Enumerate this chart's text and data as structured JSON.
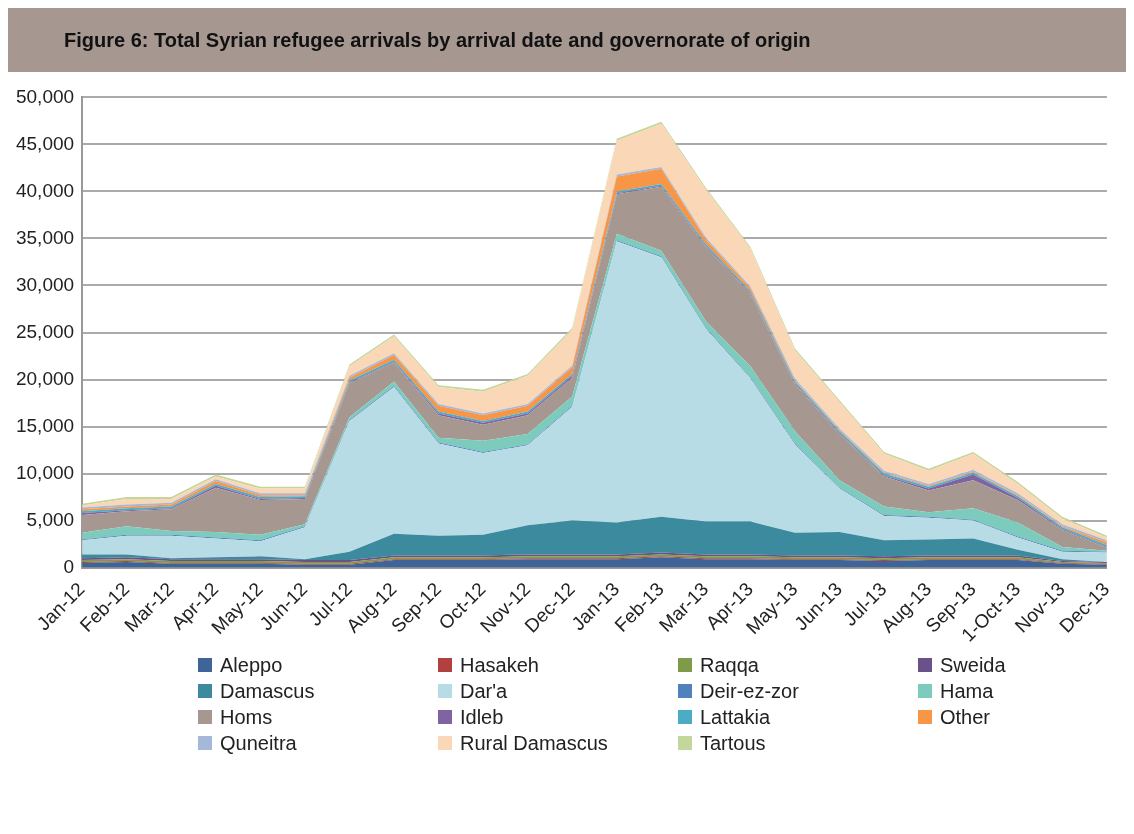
{
  "chart_data": {
    "type": "area",
    "stacked": true,
    "title": "Figure 6: Total Syrian refugee arrivals by arrival date and governorate of origin",
    "categories": [
      "Jan-12",
      "Feb-12",
      "Mar-12",
      "Apr-12",
      "May-12",
      "Jun-12",
      "Jul-12",
      "Aug-12",
      "Sep-12",
      "Oct-12",
      "Nov-12",
      "Dec-12",
      "Jan-13",
      "Feb-13",
      "Mar-13",
      "Apr-13",
      "May-13",
      "Jun-13",
      "Jul-13",
      "Aug-13",
      "Sep-13",
      "1-Oct-13",
      "Nov-13",
      "Dec-13"
    ],
    "ylim": [
      0,
      50000
    ],
    "yticks": [
      0,
      {
        "value": 5000,
        "label": "5,000"
      },
      {
        "value": 10000,
        "label": "10,000"
      },
      {
        "value": 15000,
        "label": "15,000"
      },
      {
        "value": 20000,
        "label": "20,000"
      },
      {
        "value": 25000,
        "label": "25,000"
      },
      {
        "value": 30000,
        "label": "30,000"
      },
      {
        "value": 35000,
        "label": "35,000"
      },
      {
        "value": 40000,
        "label": "40,000"
      },
      {
        "value": 45000,
        "label": "45,000"
      },
      {
        "value": 50000,
        "label": "50,000"
      }
    ],
    "grid": "y",
    "legend": "bottom",
    "series": [
      {
        "name": "Aleppo",
        "color": "#3f6497",
        "values": [
          500,
          600,
          400,
          400,
          400,
          300,
          300,
          800,
          800,
          800,
          900,
          900,
          900,
          1100,
          900,
          900,
          800,
          800,
          700,
          800,
          800,
          800,
          400,
          300
        ]
      },
      {
        "name": "Hasakeh",
        "color": "#b0413e",
        "values": [
          100,
          100,
          100,
          100,
          100,
          100,
          100,
          100,
          100,
          100,
          100,
          100,
          100,
          100,
          100,
          100,
          100,
          100,
          100,
          100,
          100,
          100,
          100,
          100
        ]
      },
      {
        "name": "Raqqa",
        "color": "#7f9a48",
        "values": [
          200,
          200,
          200,
          200,
          200,
          200,
          200,
          200,
          200,
          200,
          200,
          200,
          200,
          200,
          200,
          200,
          200,
          200,
          200,
          200,
          200,
          200,
          100,
          100
        ]
      },
      {
        "name": "Sweida",
        "color": "#6a5189",
        "values": [
          200,
          200,
          200,
          200,
          200,
          200,
          200,
          200,
          200,
          200,
          200,
          200,
          200,
          200,
          200,
          200,
          200,
          200,
          200,
          200,
          200,
          200,
          100,
          100
        ]
      },
      {
        "name": "Damascus",
        "color": "#3b8a9e",
        "values": [
          400,
          300,
          100,
          200,
          300,
          100,
          900,
          2300,
          2100,
          2200,
          3100,
          3600,
          3400,
          3800,
          3500,
          3500,
          2400,
          2500,
          1700,
          1700,
          1800,
          600,
          200,
          0
        ]
      },
      {
        "name": "Dar'a",
        "color": "#b8dce6",
        "values": [
          1500,
          2000,
          2400,
          2000,
          1600,
          3400,
          13900,
          15600,
          9800,
          8700,
          8500,
          12100,
          29900,
          27600,
          20500,
          15200,
          9400,
          4600,
          2600,
          2300,
          1900,
          1300,
          800,
          1000
        ]
      },
      {
        "name": "Deir-ez-zor",
        "color": "#4f81bd",
        "values": [
          100,
          100,
          100,
          100,
          100,
          100,
          100,
          100,
          100,
          100,
          100,
          100,
          100,
          100,
          100,
          100,
          100,
          100,
          100,
          100,
          100,
          100,
          100,
          100
        ]
      },
      {
        "name": "Hama",
        "color": "#7ccbbd",
        "values": [
          700,
          900,
          400,
          600,
          600,
          200,
          300,
          500,
          500,
          1200,
          1100,
          1000,
          700,
          600,
          700,
          1200,
          1300,
          800,
          900,
          500,
          1200,
          1500,
          400,
          100
        ]
      },
      {
        "name": "Homs",
        "color": "#a69891",
        "values": [
          1900,
          1600,
          2300,
          4700,
          3700,
          2700,
          3600,
          2000,
          2400,
          1700,
          2000,
          2000,
          4200,
          6800,
          7900,
          7700,
          5000,
          4900,
          3200,
          2300,
          3000,
          2400,
          1800,
          300
        ]
      },
      {
        "name": "Idleb",
        "color": "#8064a2",
        "values": [
          200,
          100,
          100,
          200,
          100,
          100,
          100,
          100,
          200,
          200,
          200,
          200,
          100,
          100,
          100,
          100,
          100,
          100,
          100,
          200,
          600,
          200,
          100,
          100
        ]
      },
      {
        "name": "Lattakia",
        "color": "#4bacc6",
        "values": [
          200,
          200,
          200,
          200,
          200,
          200,
          200,
          200,
          200,
          200,
          200,
          200,
          200,
          200,
          200,
          200,
          200,
          200,
          200,
          200,
          200,
          200,
          200,
          200
        ]
      },
      {
        "name": "Other",
        "color": "#f79646",
        "values": [
          200,
          200,
          200,
          300,
          200,
          100,
          300,
          500,
          600,
          600,
          600,
          700,
          1600,
          1600,
          500,
          300,
          100,
          100,
          100,
          100,
          100,
          100,
          100,
          300
        ]
      },
      {
        "name": "Quneitra",
        "color": "#a5b8da",
        "values": [
          200,
          200,
          200,
          200,
          200,
          200,
          200,
          200,
          200,
          200,
          200,
          200,
          200,
          200,
          200,
          200,
          200,
          200,
          200,
          200,
          200,
          200,
          200,
          200
        ]
      },
      {
        "name": "Rural Damascus",
        "color": "#fad7b6",
        "values": [
          200,
          600,
          400,
          300,
          500,
          500,
          1000,
          1800,
          1800,
          2300,
          3000,
          3800,
          3600,
          4600,
          5100,
          4000,
          3000,
          2800,
          1800,
          1400,
          1700,
          1000,
          600,
          300
        ]
      },
      {
        "name": "Tartous",
        "color": "#c3d69b",
        "values": [
          200,
          200,
          200,
          200,
          200,
          200,
          200,
          200,
          200,
          200,
          200,
          200,
          200,
          200,
          200,
          200,
          200,
          200,
          200,
          200,
          200,
          200,
          200,
          200
        ]
      }
    ]
  }
}
